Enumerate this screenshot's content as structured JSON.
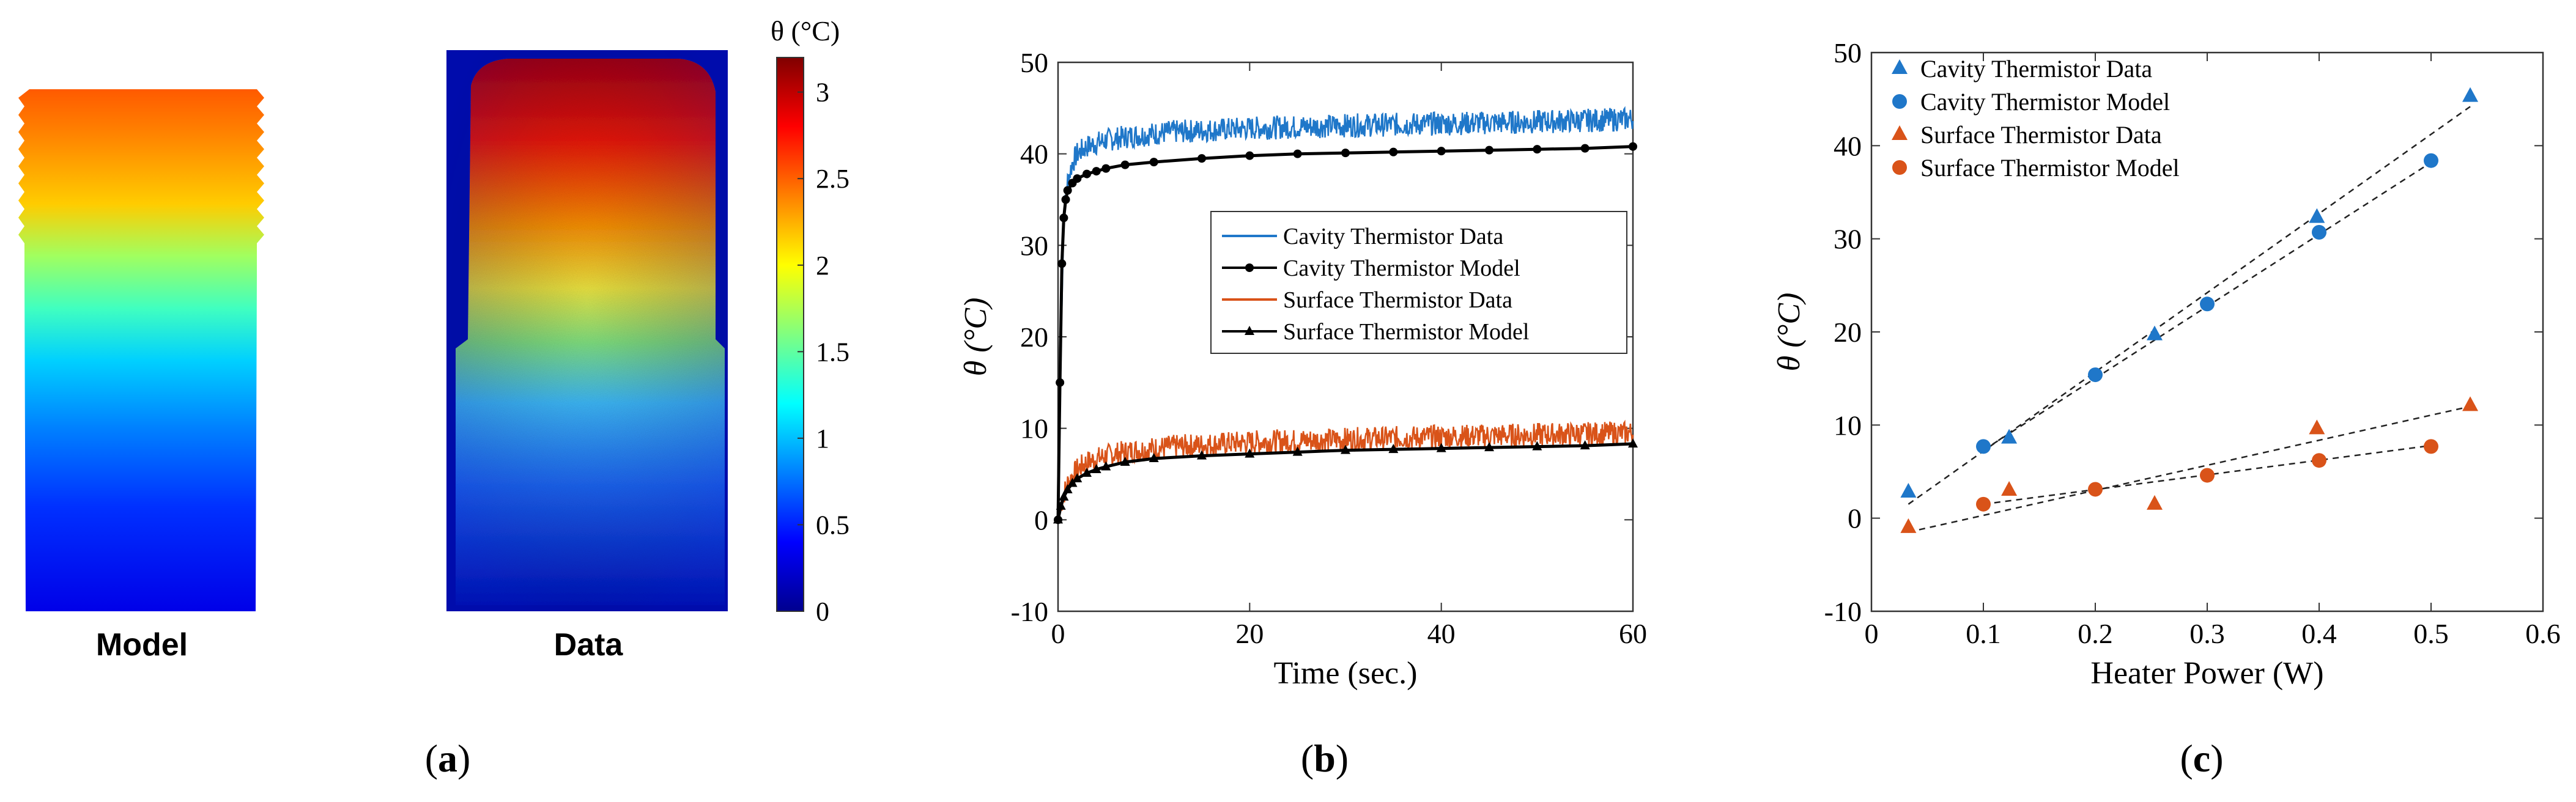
{
  "panel_labels": {
    "a": "a",
    "b": "b",
    "c": "c"
  },
  "panel_a": {
    "model_label": "Model",
    "data_label": "Data",
    "colorbar_title": "θ (°C)",
    "colorbar_ticks": [
      "0",
      "0.5",
      "1",
      "1.5",
      "2",
      "2.5",
      "3"
    ],
    "colormap": [
      "#00008f",
      "#0000ff",
      "#0080ff",
      "#00ffff",
      "#80ff80",
      "#ffff00",
      "#ff8000",
      "#ff0000",
      "#800000"
    ]
  },
  "chart_data": [
    {
      "type": "line",
      "panel": "b",
      "title": "",
      "xlabel": "Time (sec.)",
      "ylabel": "θ (°C)",
      "xlim": [
        0,
        60
      ],
      "ylim": [
        -10,
        50
      ],
      "xticks": [
        0,
        20,
        40,
        60
      ],
      "yticks": [
        -10,
        0,
        10,
        20,
        30,
        40,
        50
      ],
      "x_tick_labels": [
        "0",
        "20",
        "40",
        "60"
      ],
      "y_tick_labels": [
        "-10",
        "0",
        "10",
        "20",
        "30",
        "40",
        "50"
      ],
      "legend_location": "center-right",
      "legend": [
        "Cavity Thermistor Data",
        "Cavity Thermistor Model",
        "Surface Thermistor Data",
        "Surface Thermistor Model"
      ],
      "series": [
        {
          "name": "Cavity Thermistor Data",
          "color": "#1f77c9",
          "x": [
            0,
            0.3,
            0.6,
            1,
            1.5,
            2,
            3,
            5,
            8,
            12,
            20,
            30,
            40,
            50,
            60
          ],
          "y": [
            0,
            20,
            33,
            37,
            39,
            40,
            40.8,
            41.5,
            42,
            42.4,
            42.8,
            43.1,
            43.3,
            43.5,
            43.8
          ]
        },
        {
          "name": "Cavity Thermistor Model",
          "color": "#000000",
          "x": [
            0,
            0.2,
            0.4,
            0.6,
            0.8,
            1,
            1.5,
            2,
            3,
            4,
            5,
            7,
            10,
            15,
            20,
            25,
            30,
            35,
            40,
            45,
            50,
            55,
            60
          ],
          "y": [
            0,
            15,
            28,
            33,
            35,
            36,
            36.8,
            37.3,
            37.8,
            38.1,
            38.4,
            38.8,
            39.1,
            39.5,
            39.8,
            40,
            40.1,
            40.2,
            40.3,
            40.4,
            40.5,
            40.6,
            40.8
          ]
        },
        {
          "name": "Surface Thermistor Data",
          "color": "#d95319",
          "x": [
            0,
            0.5,
            1,
            2,
            3,
            5,
            8,
            12,
            20,
            30,
            40,
            50,
            60
          ],
          "y": [
            0,
            2.5,
            4,
            5.5,
            6.3,
            7,
            7.6,
            8,
            8.5,
            8.8,
            9.1,
            9.3,
            9.5
          ]
        },
        {
          "name": "Surface Thermistor Model",
          "color": "#000000",
          "x": [
            0,
            0.3,
            0.6,
            1,
            1.5,
            2,
            3,
            4,
            5,
            7,
            10,
            15,
            20,
            25,
            30,
            35,
            40,
            45,
            50,
            55,
            60
          ],
          "y": [
            0,
            1.5,
            2.5,
            3.3,
            4,
            4.5,
            5.1,
            5.5,
            5.8,
            6.3,
            6.7,
            7,
            7.2,
            7.4,
            7.6,
            7.7,
            7.8,
            7.9,
            8,
            8.1,
            8.3
          ]
        }
      ]
    },
    {
      "type": "scatter",
      "panel": "c",
      "title": "",
      "xlabel": "Heater Power (W)",
      "ylabel": "θ (°C)",
      "xlim": [
        0,
        0.6
      ],
      "ylim": [
        -10,
        50
      ],
      "xticks": [
        0,
        0.1,
        0.2,
        0.3,
        0.4,
        0.5,
        0.6
      ],
      "yticks": [
        -10,
        0,
        10,
        20,
        30,
        40,
        50
      ],
      "x_tick_labels": [
        "0",
        "0.1",
        "0.2",
        "0.3",
        "0.4",
        "0.5",
        "0.6"
      ],
      "y_tick_labels": [
        "-10",
        "0",
        "10",
        "20",
        "30",
        "40",
        "50"
      ],
      "legend_location": "top-left",
      "legend": [
        "Cavity Thermistor Data",
        "Cavity Thermistor Model",
        "Surface Thermistor Data",
        "Surface Thermistor Model"
      ],
      "series": [
        {
          "name": "Cavity Thermistor Data",
          "color": "#1f77c9",
          "marker": "triangle",
          "x": [
            0.033,
            0.123,
            0.253,
            0.398,
            0.535
          ],
          "y": [
            2.8,
            8.6,
            19.7,
            32.3,
            45.3
          ]
        },
        {
          "name": "Cavity Thermistor Model",
          "color": "#1f77c9",
          "marker": "circle",
          "x": [
            0.1,
            0.2,
            0.3,
            0.4,
            0.5
          ],
          "y": [
            7.7,
            15.4,
            23,
            30.7,
            38.4
          ]
        },
        {
          "name": "Surface Thermistor Data",
          "color": "#d95319",
          "marker": "triangle",
          "x": [
            0.033,
            0.123,
            0.253,
            0.398,
            0.535
          ],
          "y": [
            -1,
            3,
            1.5,
            9.6,
            12.1
          ]
        },
        {
          "name": "Surface Thermistor Model",
          "color": "#d95319",
          "marker": "circle",
          "x": [
            0.1,
            0.2,
            0.3,
            0.4,
            0.5
          ],
          "y": [
            1.5,
            3.1,
            4.6,
            6.2,
            7.7
          ]
        }
      ],
      "fit_lines": [
        {
          "x": [
            0.033,
            0.535
          ],
          "y": [
            1.5,
            44.2
          ]
        },
        {
          "x": [
            0.1,
            0.5
          ],
          "y": [
            7.3,
            38.2
          ]
        },
        {
          "x": [
            0.033,
            0.535
          ],
          "y": [
            -1.5,
            12
          ]
        },
        {
          "x": [
            0.1,
            0.5
          ],
          "y": [
            1.5,
            7.8
          ]
        }
      ]
    }
  ]
}
